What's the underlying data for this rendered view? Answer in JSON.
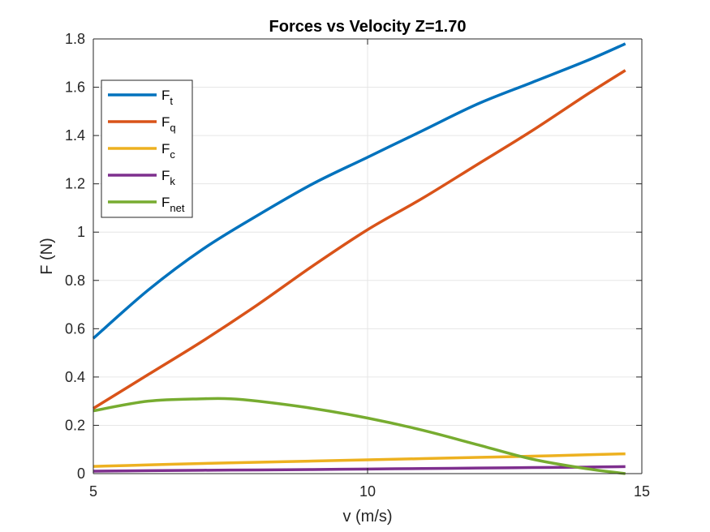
{
  "chart_data": {
    "type": "line",
    "title": "Forces vs Velocity Z=1.70",
    "xlabel": "v (m/s)",
    "ylabel": "F (N)",
    "xlim": [
      5,
      15
    ],
    "ylim": [
      0,
      1.8
    ],
    "xticks": [
      5,
      10,
      15
    ],
    "xtick_labels": [
      "5",
      "10",
      "15"
    ],
    "yticks": [
      0,
      0.2,
      0.4,
      0.6,
      0.8,
      1,
      1.2,
      1.4,
      1.6,
      1.8
    ],
    "ytick_labels": [
      "0",
      "0.2",
      "0.4",
      "0.6",
      "0.8",
      "1",
      "1.2",
      "1.4",
      "1.6",
      "1.8"
    ],
    "grid": true,
    "legend_position": "top-left",
    "series": [
      {
        "name": "F_t",
        "base": "F",
        "sub": "t",
        "color": "#0072BD",
        "x": [
          5,
          6,
          7,
          8,
          9,
          10,
          11,
          12,
          13,
          14,
          14.7
        ],
        "y": [
          0.56,
          0.76,
          0.93,
          1.07,
          1.2,
          1.31,
          1.42,
          1.53,
          1.62,
          1.71,
          1.78
        ]
      },
      {
        "name": "F_q",
        "base": "F",
        "sub": "q",
        "color": "#D95319",
        "x": [
          5,
          6,
          7,
          8,
          9,
          10,
          11,
          12,
          13,
          14,
          14.7
        ],
        "y": [
          0.27,
          0.41,
          0.55,
          0.7,
          0.86,
          1.01,
          1.14,
          1.28,
          1.42,
          1.57,
          1.67
        ]
      },
      {
        "name": "F_c",
        "base": "F",
        "sub": "c",
        "color": "#EDB120",
        "x": [
          5,
          6,
          7,
          8,
          9,
          10,
          11,
          12,
          13,
          14,
          14.7
        ],
        "y": [
          0.03,
          0.036,
          0.042,
          0.047,
          0.052,
          0.057,
          0.062,
          0.067,
          0.072,
          0.078,
          0.082
        ]
      },
      {
        "name": "F_k",
        "base": "F",
        "sub": "k",
        "color": "#7E2F8E",
        "x": [
          5,
          6,
          7,
          8,
          9,
          10,
          11,
          12,
          13,
          14,
          14.7
        ],
        "y": [
          0.01,
          0.012,
          0.014,
          0.015,
          0.017,
          0.019,
          0.021,
          0.023,
          0.025,
          0.027,
          0.029
        ]
      },
      {
        "name": "F_net",
        "base": "F",
        "sub": "net",
        "color": "#77AC30",
        "x": [
          5,
          6,
          7,
          7.5,
          8,
          9,
          10,
          11,
          12,
          13,
          14,
          14.7
        ],
        "y": [
          0.26,
          0.3,
          0.31,
          0.31,
          0.3,
          0.27,
          0.23,
          0.18,
          0.12,
          0.06,
          0.02,
          0.0
        ]
      }
    ]
  }
}
